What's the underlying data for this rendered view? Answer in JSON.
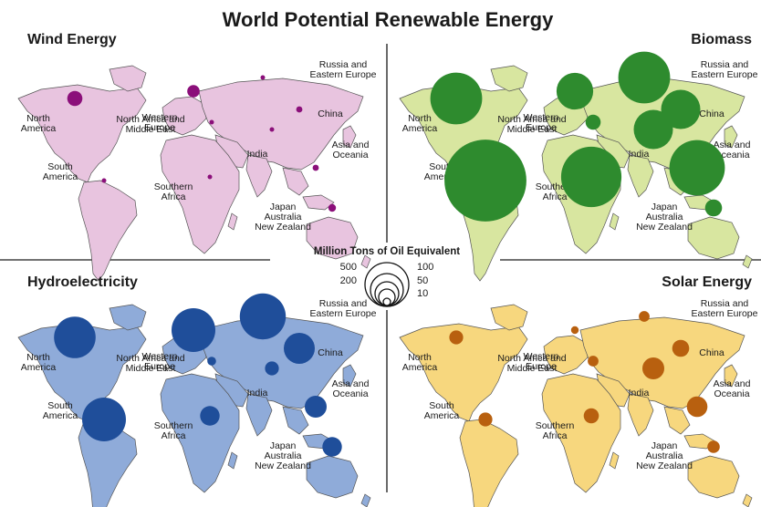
{
  "title": "World Potential Renewable Energy",
  "legend": {
    "title": "Million Tons of Oil Equivalent",
    "left_values": [
      "500",
      "200"
    ],
    "right_values": [
      "100",
      "50",
      "10"
    ]
  },
  "panels": [
    {
      "id": "wind",
      "title": "Wind Energy",
      "land_color": "#e8c4df",
      "bubble_color": "#8b0f7a",
      "labels": [
        "North\nAmerica",
        "Western\nEurope",
        "Russia and\nEastern Europe",
        "China",
        "North Africa and\nMiddle East",
        "India",
        "Asia and\nOceania",
        "South\nAmerica",
        "Southern\nAfrica",
        "Japan\nAustralia\nNew Zealand"
      ]
    },
    {
      "id": "biomass",
      "title": "Biomass",
      "land_color": "#d8e6a0",
      "bubble_color": "#2e8b2e",
      "labels": [
        "North\nAmerica",
        "Western\nEurope",
        "Russia and\nEastern Europe",
        "China",
        "North Africa and\nMiddle East",
        "India",
        "Asia and\nOceania",
        "South\nAmerica",
        "Southern\nAfrica",
        "Japan\nAustralia\nNew Zealand"
      ]
    },
    {
      "id": "hydro",
      "title": "Hydroelectricity",
      "land_color": "#8fabd9",
      "bubble_color": "#1f4e9a",
      "labels": [
        "North\nAmerica",
        "Western\nEurope",
        "Russia and\nEastern Europe",
        "China",
        "North Africa and\nMiddle East",
        "India",
        "Asia and\nOceania",
        "South\nAmerica",
        "Southern\nAfrica",
        "Japan\nAustralia\nNew Zealand"
      ]
    },
    {
      "id": "solar",
      "title": "Solar Energy",
      "land_color": "#f7d77e",
      "bubble_color": "#b8600f",
      "labels": [
        "North\nAmerica",
        "Western\nEurope",
        "Russia and\nEastern Europe",
        "China",
        "North Africa and\nMiddle East",
        "India",
        "Asia and\nOceania",
        "South\nAmerica",
        "Southern\nAfrica",
        "Japan\nAustralia\nNew Zealand"
      ]
    }
  ],
  "chart_data": {
    "type": "proportional-symbol-map",
    "unit": "Million Tons of Oil Equivalent",
    "regions": [
      "North America",
      "Western Europe",
      "Russia and Eastern Europe",
      "China",
      "North Africa and Middle East",
      "India",
      "Asia and Oceania",
      "South America",
      "Southern Africa",
      "Japan Australia New Zealand"
    ],
    "series": [
      {
        "name": "Wind Energy",
        "values": [
          12,
          8,
          1,
          2,
          1,
          1,
          2,
          1,
          1,
          3
        ]
      },
      {
        "name": "Biomass",
        "values": [
          140,
          70,
          140,
          80,
          12,
          80,
          160,
          350,
          190,
          15
        ]
      },
      {
        "name": "Hydroelectricity",
        "values": [
          90,
          100,
          110,
          50,
          4,
          10,
          25,
          100,
          20,
          20
        ]
      },
      {
        "name": "Solar Energy",
        "values": [
          10,
          3,
          6,
          15,
          6,
          25,
          22,
          10,
          12,
          8
        ]
      }
    ]
  }
}
